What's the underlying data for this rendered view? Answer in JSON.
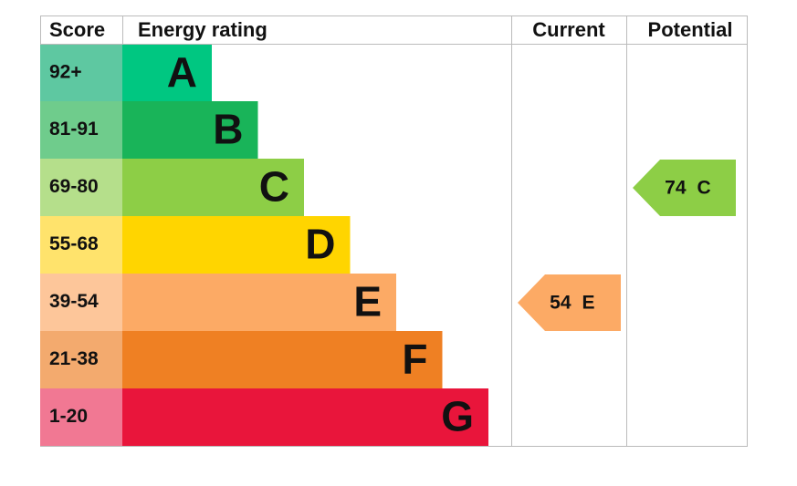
{
  "header": {
    "score": "Score",
    "rating": "Energy rating",
    "current": "Current",
    "potential": "Potential"
  },
  "bands": [
    {
      "score": "92+",
      "letter": "A",
      "color": "#00c781",
      "score_color": "#5ec8a1"
    },
    {
      "score": "81-91",
      "letter": "B",
      "color": "#19b459",
      "score_color": "#6fcc8c"
    },
    {
      "score": "69-80",
      "letter": "C",
      "color": "#8dce46",
      "score_color": "#b5df8b"
    },
    {
      "score": "55-68",
      "letter": "D",
      "color": "#ffd500",
      "score_color": "#ffe36c"
    },
    {
      "score": "39-54",
      "letter": "E",
      "color": "#fcaa65",
      "score_color": "#fdc69a"
    },
    {
      "score": "21-38",
      "letter": "F",
      "color": "#ef8023",
      "score_color": "#f3aa6e"
    },
    {
      "score": "1-20",
      "letter": "G",
      "color": "#e9153b",
      "score_color": "#f17893"
    }
  ],
  "current": {
    "value": 54,
    "letter": "E"
  },
  "potential": {
    "value": 74,
    "letter": "C"
  }
}
